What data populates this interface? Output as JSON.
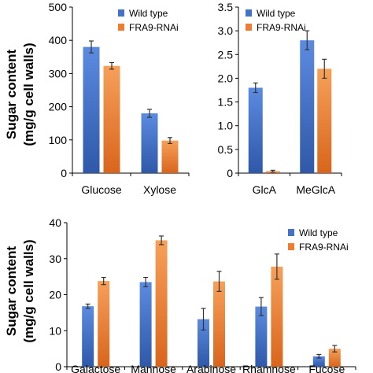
{
  "colors": {
    "wild_type": "#4472C4",
    "fra9_rnai": "#ED7D31"
  },
  "y_axis_label_line1": "Sugar content",
  "y_axis_label_line2": "(mg/g cell walls)",
  "chart_data": [
    {
      "type": "bar",
      "title": "",
      "categories": [
        "Glucose",
        "Xylose"
      ],
      "series": [
        {
          "name": "Wild type",
          "values": [
            380,
            180
          ],
          "errors": [
            18,
            12
          ]
        },
        {
          "name": "FRA9-RNAi",
          "values": [
            323,
            98
          ],
          "errors": [
            10,
            9
          ]
        }
      ],
      "ylim": [
        0,
        500
      ],
      "yticks": [
        "0",
        "100",
        "200",
        "300",
        "400",
        "500"
      ],
      "legend": "top-right",
      "grid": false
    },
    {
      "type": "bar",
      "title": "",
      "categories": [
        "GlcA",
        "MeGlcA"
      ],
      "series": [
        {
          "name": "Wild type",
          "values": [
            1.8,
            2.8
          ],
          "errors": [
            0.1,
            0.2
          ]
        },
        {
          "name": "FRA9-RNAi",
          "values": [
            0.04,
            2.2
          ],
          "errors": [
            0.02,
            0.2
          ]
        }
      ],
      "ylim": [
        0,
        3.5
      ],
      "yticks": [
        "0",
        "0.5",
        "1.0",
        "1.5",
        "2.0",
        "2.5",
        "3.0",
        "3.5"
      ],
      "legend": "top-left",
      "grid": false
    },
    {
      "type": "bar",
      "title": "",
      "categories": [
        "Galactose",
        "Mannose",
        "Arabinose",
        "Rhamnose",
        "Fucose"
      ],
      "series": [
        {
          "name": "Wild type",
          "values": [
            16.8,
            23.5,
            13.2,
            16.7,
            2.9
          ],
          "errors": [
            0.6,
            1.3,
            3.0,
            2.5,
            0.5
          ]
        },
        {
          "name": "FRA9-RNAi",
          "values": [
            23.8,
            35.1,
            23.7,
            27.8,
            5.0
          ],
          "errors": [
            1.0,
            1.2,
            2.8,
            3.5,
            0.9
          ]
        }
      ],
      "ylim": [
        0,
        40
      ],
      "yticks": [
        "0",
        "10",
        "20",
        "30",
        "40"
      ],
      "legend": "top-right",
      "grid": false
    }
  ]
}
